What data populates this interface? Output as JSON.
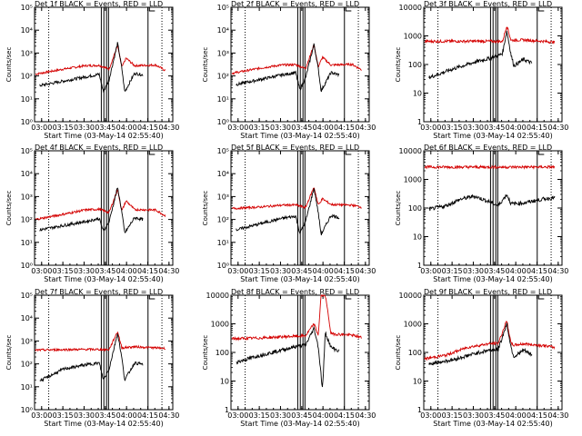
{
  "chart_data": [
    {
      "type": "line",
      "title": "Det 1f BLACK = Events, RED = LLD",
      "xlabel": "Start Time (03-May-14 02:55:40)",
      "ylabel": "Counts/sec",
      "scale": "log",
      "ylim": [
        1,
        100000
      ],
      "ytick_labels": [
        "10⁰",
        "10¹",
        "10²",
        "10³",
        "10⁴",
        "10⁵"
      ],
      "xlim_minutes": [
        -0.67,
        97
      ],
      "xtick_labels": [
        "03:00",
        "03:15",
        "03:30",
        "03:45",
        "04:00",
        "04:15",
        "04:30"
      ],
      "vlines_dotted": [
        [
          "03:05"
        ],
        [
          "04:25"
        ]
      ],
      "events": [
        [
          3,
          38
        ],
        [
          20,
          60
        ],
        [
          35,
          90
        ],
        [
          45,
          118
        ],
        [
          48,
          20
        ],
        [
          52,
          70
        ],
        [
          58,
          2700
        ],
        [
          61,
          220
        ],
        [
          63,
          20
        ],
        [
          70,
          130
        ],
        [
          76,
          110
        ]
      ],
      "lld": [
        [
          0,
          120
        ],
        [
          20,
          200
        ],
        [
          35,
          280
        ],
        [
          45,
          290
        ],
        [
          52,
          200
        ],
        [
          58,
          2100
        ],
        [
          61,
          240
        ],
        [
          64,
          600
        ],
        [
          70,
          280
        ],
        [
          85,
          300
        ],
        [
          92,
          170
        ]
      ]
    },
    {
      "type": "line",
      "title": "Det 2f BLACK = Events, RED = LLD",
      "xlabel": "Start Time (03-May-14 02:55:40)",
      "ylabel": "Counts/sec",
      "scale": "log",
      "ylim": [
        1,
        100000
      ],
      "ytick_labels": [
        "10⁰",
        "10¹",
        "10²",
        "10³",
        "10⁴",
        "10⁵"
      ],
      "xlim_minutes": [
        -0.67,
        97
      ],
      "xtick_labels": [
        "03:00",
        "03:15",
        "03:30",
        "03:45",
        "04:00",
        "04:15",
        "04:30"
      ],
      "events": [
        [
          3,
          42
        ],
        [
          20,
          70
        ],
        [
          35,
          110
        ],
        [
          45,
          140
        ],
        [
          48,
          25
        ],
        [
          52,
          80
        ],
        [
          58,
          2400
        ],
        [
          61,
          210
        ],
        [
          63,
          22
        ],
        [
          70,
          140
        ],
        [
          76,
          110
        ]
      ],
      "lld": [
        [
          0,
          130
        ],
        [
          20,
          220
        ],
        [
          35,
          300
        ],
        [
          45,
          310
        ],
        [
          52,
          210
        ],
        [
          58,
          2300
        ],
        [
          61,
          250
        ],
        [
          64,
          650
        ],
        [
          70,
          300
        ],
        [
          85,
          320
        ],
        [
          92,
          180
        ]
      ]
    },
    {
      "type": "line",
      "title": "Det 3f BLACK = Events, RED = LLD",
      "xlabel": "Start Time (03-May-14 02:55:40)",
      "ylabel": "Counts/sec",
      "scale": "log",
      "ylim": [
        1,
        10000
      ],
      "ytick_labels": [
        "1",
        "10",
        "100",
        "1000",
        "10000"
      ],
      "xlim_minutes": [
        -0.67,
        97
      ],
      "xtick_labels": [
        "03:00",
        "03:15",
        "03:30",
        "03:45",
        "04:00",
        "04:15",
        "04:30"
      ],
      "events": [
        [
          3,
          35
        ],
        [
          20,
          70
        ],
        [
          35,
          120
        ],
        [
          45,
          160
        ],
        [
          48,
          180
        ],
        [
          52,
          200
        ],
        [
          55,
          250
        ],
        [
          58,
          1500
        ],
        [
          61,
          220
        ],
        [
          63,
          90
        ],
        [
          70,
          150
        ],
        [
          76,
          110
        ]
      ],
      "lld": [
        [
          0,
          640
        ],
        [
          20,
          650
        ],
        [
          40,
          650
        ],
        [
          55,
          640
        ],
        [
          58,
          2300
        ],
        [
          61,
          700
        ],
        [
          70,
          720
        ],
        [
          85,
          640
        ],
        [
          92,
          600
        ]
      ]
    },
    {
      "type": "line",
      "title": "Det 4f BLACK = Events, RED = LLD",
      "xlabel": "Start Time (03-May-14 02:55:40)",
      "ylabel": "Counts/sec",
      "scale": "log",
      "ylim": [
        1,
        100000
      ],
      "ytick_labels": [
        "10⁰",
        "10¹",
        "10²",
        "10³",
        "10⁴",
        "10⁵"
      ],
      "xlim_minutes": [
        -0.67,
        97
      ],
      "xtick_labels": [
        "03:00",
        "03:15",
        "03:30",
        "03:45",
        "04:00",
        "04:15",
        "04:30"
      ],
      "events": [
        [
          3,
          35
        ],
        [
          20,
          55
        ],
        [
          35,
          80
        ],
        [
          45,
          110
        ],
        [
          48,
          30
        ],
        [
          52,
          80
        ],
        [
          58,
          2500
        ],
        [
          61,
          210
        ],
        [
          63,
          25
        ],
        [
          70,
          120
        ],
        [
          76,
          100
        ]
      ],
      "lld": [
        [
          0,
          100
        ],
        [
          20,
          170
        ],
        [
          35,
          260
        ],
        [
          45,
          280
        ],
        [
          52,
          200
        ],
        [
          58,
          2000
        ],
        [
          61,
          240
        ],
        [
          64,
          650
        ],
        [
          70,
          270
        ],
        [
          85,
          260
        ],
        [
          92,
          140
        ]
      ]
    },
    {
      "type": "line",
      "title": "Det 5f BLACK = Events, RED = LLD",
      "xlabel": "Start Time (03-May-14 02:55:40)",
      "ylabel": "Counts/sec",
      "scale": "log",
      "ylim": [
        1,
        100000
      ],
      "ytick_labels": [
        "10⁰",
        "10¹",
        "10²",
        "10³",
        "10⁴",
        "10⁵"
      ],
      "xlim_minutes": [
        -0.67,
        97
      ],
      "xtick_labels": [
        "03:00",
        "03:15",
        "03:30",
        "03:45",
        "04:00",
        "04:15",
        "04:30"
      ],
      "events": [
        [
          3,
          35
        ],
        [
          20,
          65
        ],
        [
          35,
          110
        ],
        [
          45,
          140
        ],
        [
          48,
          25
        ],
        [
          52,
          80
        ],
        [
          58,
          2300
        ],
        [
          61,
          200
        ],
        [
          63,
          22
        ],
        [
          70,
          150
        ],
        [
          76,
          120
        ]
      ],
      "lld": [
        [
          0,
          300
        ],
        [
          20,
          350
        ],
        [
          35,
          420
        ],
        [
          45,
          430
        ],
        [
          52,
          330
        ],
        [
          58,
          2600
        ],
        [
          61,
          430
        ],
        [
          64,
          800
        ],
        [
          70,
          450
        ],
        [
          85,
          420
        ],
        [
          92,
          340
        ]
      ]
    },
    {
      "type": "line",
      "title": "Det 6f BLACK = Events, RED = LLD",
      "xlabel": "Start Time (03-May-14 02:55:40)",
      "ylabel": "Counts/sec",
      "scale": "log",
      "ylim": [
        1,
        10000
      ],
      "ytick_labels": [
        "1",
        "10",
        "100",
        "1000",
        "10000"
      ],
      "xlim_minutes": [
        -0.67,
        97
      ],
      "xtick_labels": [
        "03:00",
        "03:15",
        "03:30",
        "03:45",
        "04:00",
        "04:15",
        "04:30"
      ],
      "events": [
        [
          3,
          90
        ],
        [
          15,
          120
        ],
        [
          25,
          200
        ],
        [
          35,
          260
        ],
        [
          45,
          170
        ],
        [
          52,
          120
        ],
        [
          58,
          300
        ],
        [
          61,
          140
        ],
        [
          70,
          150
        ],
        [
          85,
          210
        ],
        [
          92,
          230
        ]
      ],
      "lld": [
        [
          0,
          2700
        ],
        [
          92,
          2700
        ]
      ]
    },
    {
      "type": "line",
      "title": "Det 7f BLACK = Events, RED = LLD",
      "xlabel": "Start Time (03-May-14 02:55:40)",
      "ylabel": "Counts/sec",
      "scale": "log",
      "ylim": [
        1,
        100000
      ],
      "ytick_labels": [
        "10⁰",
        "10¹",
        "10²",
        "10³",
        "10⁴",
        "10⁵"
      ],
      "xlim_minutes": [
        -0.67,
        97
      ],
      "xtick_labels": [
        "03:00",
        "03:15",
        "03:30",
        "03:45",
        "04:00",
        "04:15",
        "04:30"
      ],
      "events": [
        [
          3,
          18
        ],
        [
          20,
          60
        ],
        [
          35,
          90
        ],
        [
          45,
          110
        ],
        [
          48,
          20
        ],
        [
          52,
          60
        ],
        [
          58,
          2200
        ],
        [
          61,
          180
        ],
        [
          63,
          20
        ],
        [
          70,
          110
        ],
        [
          76,
          95
        ]
      ],
      "lld": [
        [
          0,
          400
        ],
        [
          20,
          420
        ],
        [
          40,
          430
        ],
        [
          52,
          420
        ],
        [
          58,
          2600
        ],
        [
          61,
          500
        ],
        [
          70,
          560
        ],
        [
          85,
          500
        ],
        [
          92,
          480
        ]
      ]
    },
    {
      "type": "line",
      "title": "Det 8f BLACK = Events, RED = LLD",
      "xlabel": "Start Time (03-May-14 02:55:40)",
      "ylabel": "Counts/sec",
      "scale": "log",
      "ylim": [
        1,
        10000
      ],
      "ytick_labels": [
        "1",
        "10",
        "100",
        "1000",
        "10000"
      ],
      "xlim_minutes": [
        -0.67,
        97
      ],
      "xtick_labels": [
        "03:00",
        "03:15",
        "03:30",
        "03:45",
        "04:00",
        "04:15",
        "04:30"
      ],
      "events": [
        [
          3,
          45
        ],
        [
          20,
          80
        ],
        [
          35,
          120
        ],
        [
          45,
          160
        ],
        [
          52,
          180
        ],
        [
          58,
          700
        ],
        [
          61,
          160
        ],
        [
          64,
          5
        ],
        [
          66,
          500
        ],
        [
          70,
          150
        ],
        [
          76,
          110
        ]
      ],
      "lld": [
        [
          0,
          300
        ],
        [
          20,
          320
        ],
        [
          40,
          360
        ],
        [
          52,
          380
        ],
        [
          58,
          1000
        ],
        [
          61,
          400
        ],
        [
          63,
          10000
        ],
        [
          66,
          10000
        ],
        [
          70,
          450
        ],
        [
          85,
          400
        ],
        [
          92,
          330
        ]
      ]
    },
    {
      "type": "line",
      "title": "Det 9f BLACK = Events, RED = LLD",
      "xlabel": "Start Time (03-May-14 02:55:40)",
      "ylabel": "Counts/sec",
      "scale": "log",
      "ylim": [
        1,
        10000
      ],
      "ytick_labels": [
        "1",
        "10",
        "100",
        "1000",
        "10000"
      ],
      "xlim_minutes": [
        -0.67,
        97
      ],
      "xtick_labels": [
        "03:00",
        "03:15",
        "03:30",
        "03:45",
        "04:00",
        "04:15",
        "04:30"
      ],
      "events": [
        [
          3,
          40
        ],
        [
          20,
          55
        ],
        [
          35,
          90
        ],
        [
          45,
          120
        ],
        [
          52,
          130
        ],
        [
          58,
          1000
        ],
        [
          61,
          150
        ],
        [
          63,
          70
        ],
        [
          70,
          120
        ],
        [
          76,
          80
        ]
      ],
      "lld": [
        [
          0,
          60
        ],
        [
          15,
          80
        ],
        [
          30,
          150
        ],
        [
          45,
          200
        ],
        [
          52,
          210
        ],
        [
          58,
          1300
        ],
        [
          61,
          200
        ],
        [
          63,
          180
        ],
        [
          70,
          200
        ],
        [
          85,
          170
        ],
        [
          92,
          150
        ]
      ]
    }
  ]
}
